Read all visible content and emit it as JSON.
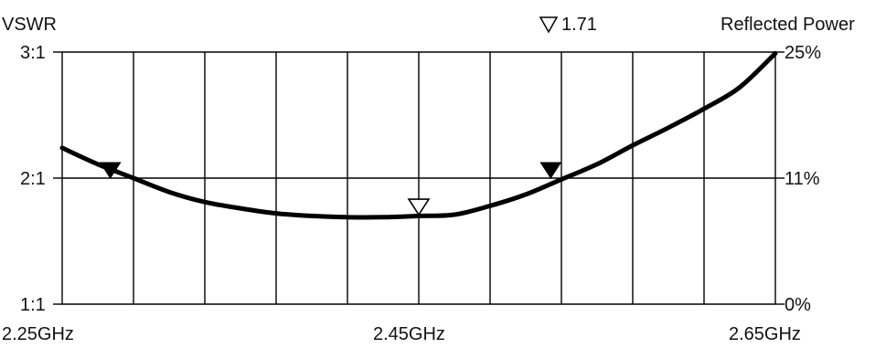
{
  "chart_data": {
    "type": "line",
    "left_axis_title": "VSWR",
    "right_axis_title": "Reflected Power",
    "marker_readout": "1.71",
    "y_ticks_left": [
      "3:1",
      "2:1",
      "1:1"
    ],
    "y_ticks_right": [
      "25%",
      "11%",
      "0%"
    ],
    "x_ticks": [
      "2.25GHz",
      "2.45GHz",
      "2.65GHz"
    ],
    "xlim": [
      2.25,
      2.65
    ],
    "ylim": [
      1,
      3
    ],
    "grid": true,
    "grid_columns": 10,
    "x": [
      2.25,
      2.27,
      2.29,
      2.31,
      2.33,
      2.35,
      2.37,
      2.39,
      2.41,
      2.43,
      2.45,
      2.47,
      2.49,
      2.51,
      2.53,
      2.55,
      2.57,
      2.59,
      2.61,
      2.63,
      2.65
    ],
    "series": [
      {
        "values": [
          2.24,
          2.11,
          2.0,
          1.89,
          1.81,
          1.76,
          1.72,
          1.7,
          1.69,
          1.69,
          1.7,
          1.71,
          1.78,
          1.87,
          1.99,
          2.11,
          2.26,
          2.4,
          2.55,
          2.72,
          2.99
        ]
      }
    ],
    "markers": [
      {
        "x": 2.277,
        "y": 2.0,
        "style": "filled"
      },
      {
        "x": 2.45,
        "y": 1.71,
        "style": "hollow"
      },
      {
        "x": 2.524,
        "y": 2.0,
        "style": "filled"
      }
    ],
    "colors": {
      "line": "#000000",
      "grid": "#000000",
      "background": "#ffffff"
    }
  }
}
